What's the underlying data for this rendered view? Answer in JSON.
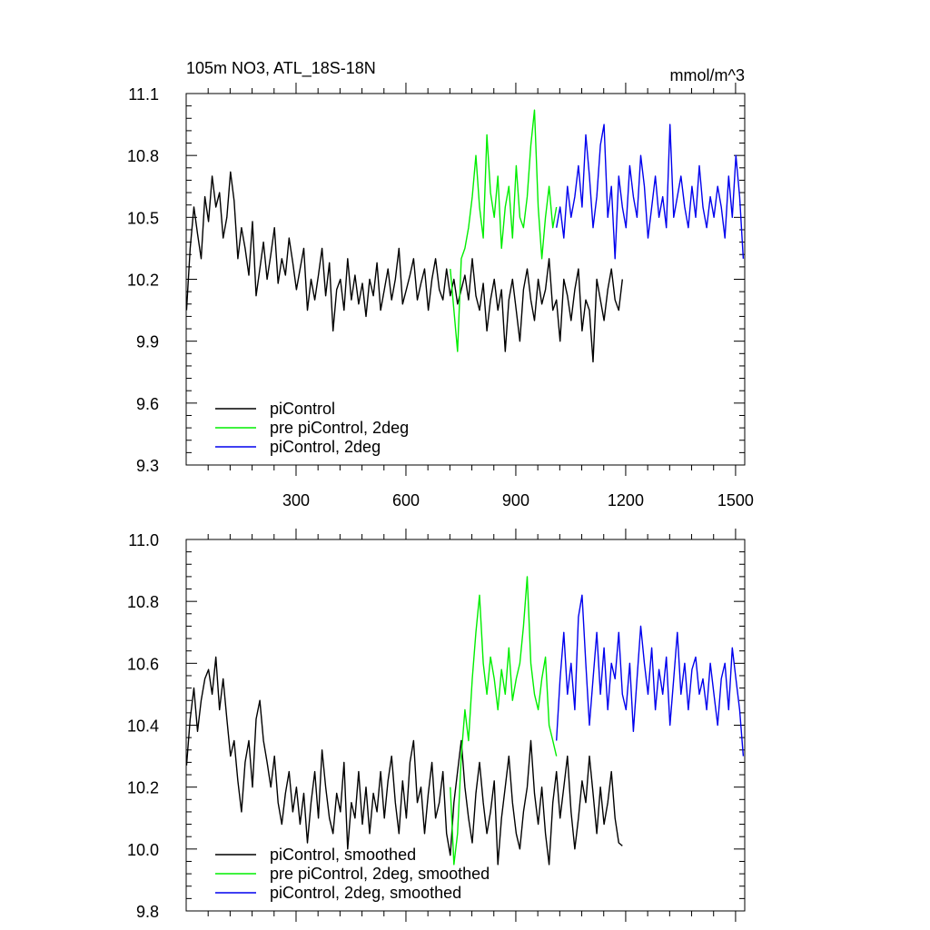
{
  "chart_data": [
    {
      "type": "line",
      "title": "105m NO3, ATL_18S-18N",
      "units": "mmol/m^3",
      "xlabel": "",
      "ylabel": "",
      "xlim": [
        0,
        1525
      ],
      "ylim": [
        9.3,
        11.1
      ],
      "xticks": [
        300,
        600,
        900,
        1200,
        1500
      ],
      "yticks": [
        9.3,
        9.6,
        9.9,
        10.2,
        10.5,
        10.8,
        11.1
      ],
      "ytick_labels": [
        "9.3",
        "9.6",
        "9.9",
        "10.2",
        "10.5",
        "10.8",
        "11.1"
      ],
      "legend_position": "bottom-left",
      "series": [
        {
          "name": "piControl",
          "color": "#000000",
          "x_start": 1,
          "x_step": 10,
          "values": [
            10.05,
            10.35,
            10.55,
            10.42,
            10.3,
            10.6,
            10.48,
            10.7,
            10.55,
            10.62,
            10.4,
            10.5,
            10.72,
            10.58,
            10.3,
            10.45,
            10.35,
            10.22,
            10.48,
            10.12,
            10.25,
            10.38,
            10.2,
            10.32,
            10.45,
            10.18,
            10.3,
            10.22,
            10.4,
            10.28,
            10.15,
            10.25,
            10.35,
            10.05,
            10.2,
            10.1,
            10.22,
            10.35,
            10.12,
            10.28,
            9.95,
            10.15,
            10.2,
            10.05,
            10.3,
            10.1,
            10.22,
            10.08,
            10.18,
            10.02,
            10.2,
            10.12,
            10.28,
            10.05,
            10.15,
            10.25,
            10.1,
            10.2,
            10.35,
            10.08,
            10.15,
            10.22,
            10.3,
            10.1,
            10.18,
            10.25,
            10.05,
            10.2,
            10.3,
            10.15,
            10.1,
            10.25,
            10.12,
            10.2,
            10.08,
            10.15,
            10.22,
            10.1,
            10.3,
            10.12,
            10.05,
            10.18,
            9.95,
            10.1,
            10.2,
            10.05,
            10.15,
            9.85,
            10.1,
            10.2,
            10.05,
            9.9,
            10.15,
            10.25,
            10.1,
            10.0,
            10.2,
            10.08,
            10.15,
            10.3,
            10.05,
            10.1,
            9.9,
            10.2,
            10.12,
            10.0,
            10.15,
            10.25,
            9.95,
            10.1,
            10.05,
            9.8,
            10.2,
            10.1,
            10.0,
            10.15,
            10.25,
            10.1,
            10.05,
            10.2
          ]
        },
        {
          "name": "pre piControl, 2deg",
          "color": "#00ee00",
          "x_start": 721,
          "x_step": 10,
          "values": [
            10.25,
            10.05,
            9.85,
            10.3,
            10.35,
            10.45,
            10.6,
            10.8,
            10.55,
            10.4,
            10.9,
            10.62,
            10.5,
            10.7,
            10.35,
            10.55,
            10.65,
            10.4,
            10.75,
            10.5,
            10.45,
            10.6,
            10.85,
            11.02,
            10.55,
            10.3,
            10.5,
            10.65,
            10.45,
            10.55
          ]
        },
        {
          "name": "piControl, 2deg",
          "color": "#0000ee",
          "x_start": 1011,
          "x_step": 10,
          "values": [
            10.45,
            10.55,
            10.4,
            10.65,
            10.5,
            10.6,
            10.75,
            10.55,
            10.9,
            10.7,
            10.45,
            10.6,
            10.85,
            10.95,
            10.5,
            10.65,
            10.3,
            10.7,
            10.55,
            10.45,
            10.75,
            10.6,
            10.5,
            10.8,
            10.65,
            10.4,
            10.55,
            10.7,
            10.5,
            10.6,
            10.45,
            10.95,
            10.5,
            10.6,
            10.7,
            10.55,
            10.45,
            10.65,
            10.5,
            10.75,
            10.55,
            10.45,
            10.6,
            10.5,
            10.65,
            10.55,
            10.4,
            10.7,
            10.5,
            10.8,
            10.6,
            10.3
          ]
        }
      ]
    },
    {
      "type": "line",
      "title": "",
      "xlabel": "",
      "ylabel": "",
      "xlim": [
        0,
        1525
      ],
      "ylim": [
        9.8,
        11.0
      ],
      "xticks": [
        300,
        600,
        900,
        1200,
        1500
      ],
      "yticks": [
        9.8,
        10.0,
        10.2,
        10.4,
        10.6,
        10.8,
        11.0
      ],
      "ytick_labels": [
        "9.8",
        "10.0",
        "10.2",
        "10.4",
        "10.6",
        "10.8",
        "11.0"
      ],
      "legend_position": "bottom-left",
      "series": [
        {
          "name": "piControl, smoothed",
          "color": "#000000",
          "x_start": 1,
          "x_step": 10,
          "values": [
            10.27,
            10.42,
            10.52,
            10.38,
            10.48,
            10.55,
            10.58,
            10.5,
            10.62,
            10.45,
            10.55,
            10.42,
            10.3,
            10.35,
            10.22,
            10.12,
            10.28,
            10.35,
            10.2,
            10.42,
            10.48,
            10.35,
            10.28,
            10.2,
            10.3,
            10.15,
            10.08,
            10.18,
            10.25,
            10.12,
            10.2,
            10.08,
            10.18,
            10.02,
            10.15,
            10.25,
            10.1,
            10.32,
            10.2,
            10.1,
            10.05,
            10.18,
            10.12,
            10.28,
            10.0,
            10.15,
            10.1,
            10.25,
            10.08,
            10.2,
            10.05,
            10.18,
            10.12,
            10.25,
            10.1,
            10.22,
            10.3,
            10.15,
            10.05,
            10.22,
            10.1,
            10.28,
            10.35,
            10.15,
            10.2,
            10.05,
            10.18,
            10.28,
            10.1,
            10.15,
            10.25,
            10.05,
            9.98,
            10.15,
            10.25,
            10.35,
            10.2,
            10.1,
            10.02,
            10.18,
            10.28,
            10.15,
            10.05,
            10.12,
            10.22,
            9.95,
            10.1,
            10.2,
            10.3,
            10.15,
            10.05,
            10.0,
            10.12,
            10.2,
            10.35,
            10.18,
            10.08,
            10.2,
            10.05,
            9.95,
            10.15,
            10.25,
            10.1,
            10.2,
            10.3,
            10.12,
            10.0,
            10.1,
            10.22,
            10.15,
            10.3,
            10.18,
            10.05,
            10.2,
            10.08,
            10.15,
            10.25,
            10.1,
            10.02,
            10.01
          ]
        },
        {
          "name": "pre piControl, 2deg, smoothed",
          "color": "#00ee00",
          "x_start": 721,
          "x_step": 10,
          "values": [
            10.2,
            9.95,
            10.05,
            10.3,
            10.45,
            10.35,
            10.55,
            10.7,
            10.82,
            10.6,
            10.5,
            10.62,
            10.55,
            10.45,
            10.58,
            10.5,
            10.65,
            10.48,
            10.55,
            10.6,
            10.72,
            10.88,
            10.6,
            10.5,
            10.45,
            10.55,
            10.62,
            10.4,
            10.35,
            10.3
          ]
        },
        {
          "name": "piControl, 2deg, smoothed",
          "color": "#0000ee",
          "x_start": 1011,
          "x_step": 10,
          "values": [
            10.35,
            10.55,
            10.7,
            10.5,
            10.6,
            10.45,
            10.75,
            10.82,
            10.6,
            10.4,
            10.55,
            10.7,
            10.5,
            10.65,
            10.45,
            10.6,
            10.55,
            10.7,
            10.5,
            10.45,
            10.6,
            10.38,
            10.55,
            10.72,
            10.6,
            10.5,
            10.65,
            10.45,
            10.58,
            10.5,
            10.62,
            10.4,
            10.55,
            10.7,
            10.5,
            10.6,
            10.45,
            10.58,
            10.62,
            10.5,
            10.55,
            10.45,
            10.6,
            10.5,
            10.4,
            10.55,
            10.6,
            10.45,
            10.65,
            10.55,
            10.45,
            10.3
          ]
        }
      ]
    }
  ]
}
